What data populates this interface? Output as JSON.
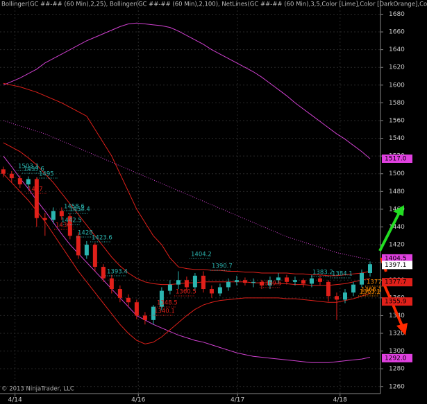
{
  "chart_data": {
    "type": "candlestick",
    "title": "Bollinger(GC ##-## (60 Min),2,25), Bollinger(GC ##-## (60 Min),2,100), NetLines(GC ##-## (60 Min),3,5,Color [Lime],Color [DarkOrange],Color [Teal],Color",
    "footer": "© 2013 NinjaTrader, LLC",
    "ylim": [
      1252,
      1696
    ],
    "yticks": [
      1260,
      1280,
      1300,
      1320,
      1340,
      1360,
      1380,
      1400,
      1420,
      1440,
      1460,
      1480,
      1500,
      1520,
      1540,
      1560,
      1580,
      1600,
      1620,
      1640,
      1660,
      1680
    ],
    "xlim": [
      -0.4,
      45.25
    ],
    "xticks": [
      {
        "value": 1.4,
        "label": "4/14"
      },
      {
        "value": 16.2,
        "label": "4/16"
      },
      {
        "value": 28.1,
        "label": "4/17"
      },
      {
        "value": 40.4,
        "label": "4/18"
      }
    ],
    "grid": true,
    "up_color": "#2bb5b0",
    "down_color": "#e0201a",
    "candles": {
      "open": [
        1505,
        1500,
        1495,
        1488,
        1494,
        1450,
        1448,
        1458,
        1452,
        1430,
        1408,
        1420,
        1395,
        1382,
        1370,
        1360,
        1355,
        1340,
        1335,
        1350,
        1368,
        1375,
        1380,
        1372,
        1385,
        1370,
        1365,
        1372,
        1378,
        1380,
        1377,
        1378,
        1374,
        1380,
        1383,
        1378,
        1380,
        1376,
        1382,
        1378,
        1362,
        1358,
        1366,
        1375,
        1388
      ],
      "high": [
        1508,
        1503,
        1498,
        1497,
        1496,
        1456,
        1462,
        1462,
        1456,
        1434,
        1424,
        1422,
        1398,
        1386,
        1374,
        1364,
        1358,
        1344,
        1352,
        1372,
        1380,
        1390,
        1384,
        1388,
        1390,
        1374,
        1376,
        1382,
        1385,
        1383,
        1382,
        1380,
        1384,
        1388,
        1386,
        1384,
        1382,
        1386,
        1386,
        1380,
        1366,
        1370,
        1378,
        1392,
        1401
      ],
      "low": [
        1496,
        1490,
        1484,
        1484,
        1440,
        1430,
        1444,
        1448,
        1426,
        1404,
        1404,
        1390,
        1378,
        1365,
        1355,
        1350,
        1336,
        1330,
        1330,
        1346,
        1364,
        1370,
        1368,
        1368,
        1366,
        1360,
        1362,
        1368,
        1374,
        1374,
        1372,
        1370,
        1370,
        1376,
        1375,
        1374,
        1372,
        1372,
        1374,
        1356,
        1335,
        1354,
        1362,
        1372,
        1384
      ],
      "close": [
        1500,
        1495,
        1488,
        1494,
        1450,
        1448,
        1458,
        1452,
        1430,
        1408,
        1420,
        1395,
        1382,
        1370,
        1360,
        1355,
        1340,
        1335,
        1350,
        1368,
        1375,
        1380,
        1372,
        1385,
        1370,
        1365,
        1372,
        1378,
        1380,
        1377,
        1378,
        1374,
        1380,
        1383,
        1378,
        1380,
        1376,
        1382,
        1378,
        1362,
        1358,
        1366,
        1375,
        1388,
        1398
      ]
    },
    "series": [
      {
        "color": "#d040d0",
        "dash": false,
        "values": [
          1600,
          1604,
          1608,
          1613,
          1618,
          1625,
          1630,
          1635,
          1640,
          1645,
          1650,
          1654,
          1658,
          1662,
          1666,
          1669,
          1670,
          1669,
          1668,
          1667,
          1665,
          1661,
          1656,
          1651,
          1646,
          1640,
          1635,
          1630,
          1625,
          1620,
          1615,
          1609,
          1602,
          1595,
          1588,
          1580,
          1573,
          1566,
          1559,
          1552,
          1545,
          1539,
          1532,
          1525,
          1517
        ]
      },
      {
        "color": "#d040d0",
        "dash": true,
        "values": [
          1560,
          1557,
          1554,
          1551,
          1548,
          1545,
          1541,
          1537,
          1533,
          1529,
          1525,
          1521,
          1517,
          1513,
          1509,
          1505,
          1501,
          1497,
          1493,
          1489,
          1485,
          1481,
          1477,
          1473,
          1469,
          1465,
          1461,
          1457,
          1453,
          1449,
          1445,
          1441,
          1437,
          1433,
          1429,
          1426,
          1423,
          1420,
          1417,
          1414,
          1411,
          1409,
          1407,
          1405,
          1403
        ]
      },
      {
        "color": "#d040d0",
        "dash": false,
        "values": [
          1520,
          1508,
          1495,
          1483,
          1470,
          1458,
          1445,
          1432,
          1420,
          1410,
          1400,
          1390,
          1380,
          1370,
          1360,
          1350,
          1340,
          1335,
          1330,
          1326,
          1322,
          1318,
          1315,
          1312,
          1310,
          1307,
          1304,
          1301,
          1298,
          1296,
          1294,
          1293,
          1292,
          1291,
          1290,
          1289,
          1288,
          1287,
          1287,
          1287,
          1288,
          1289,
          1290,
          1291,
          1293
        ]
      },
      {
        "color": "#e0201a",
        "dash": false,
        "values": [
          1602,
          1600,
          1598,
          1595,
          1592,
          1588,
          1584,
          1580,
          1575,
          1570,
          1565,
          1550,
          1535,
          1520,
          1500,
          1480,
          1460,
          1445,
          1430,
          1420,
          1405,
          1395,
          1393,
          1392,
          1392,
          1391,
          1391,
          1390,
          1390,
          1389,
          1389,
          1388,
          1388,
          1388,
          1388,
          1387,
          1387,
          1386,
          1386,
          1385,
          1385,
          1386,
          1387,
          1388,
          1390
        ]
      },
      {
        "color": "#e0201a",
        "dash": false,
        "values": [
          1535,
          1530,
          1525,
          1518,
          1510,
          1500,
          1490,
          1478,
          1466,
          1454,
          1442,
          1430,
          1418,
          1406,
          1396,
          1388,
          1382,
          1378,
          1376,
          1375,
          1375,
          1376,
          1377,
          1377,
          1378,
          1378,
          1378,
          1378,
          1378,
          1378,
          1377,
          1377,
          1377,
          1376,
          1376,
          1375,
          1375,
          1374,
          1374,
          1374,
          1375,
          1376,
          1378,
          1380,
          1382
        ]
      },
      {
        "color": "#e0201a",
        "dash": false,
        "values": [
          1500,
          1490,
          1480,
          1470,
          1458,
          1446,
          1432,
          1418,
          1404,
          1390,
          1378,
          1366,
          1354,
          1342,
          1330,
          1320,
          1312,
          1308,
          1310,
          1316,
          1324,
          1332,
          1340,
          1347,
          1352,
          1355,
          1357,
          1358,
          1359,
          1360,
          1360,
          1360,
          1360,
          1360,
          1359,
          1359,
          1358,
          1357,
          1356,
          1355,
          1355,
          1357,
          1359,
          1362,
          1365
        ]
      }
    ],
    "price_markers": [
      {
        "value": 1517,
        "label": "1517.0",
        "color": "#e040e0"
      },
      {
        "value": 1404.5,
        "label": "1404.5",
        "color": "#e040e0"
      },
      {
        "value": 1397.1,
        "label": "1397.1",
        "color": "#ffffff"
      },
      {
        "value": 1377.7,
        "label": "1377.7",
        "color": "#e0201a"
      },
      {
        "value": 1355.9,
        "label": "1355.9",
        "color": "#e0201a"
      },
      {
        "value": 1292,
        "label": "1292.0",
        "color": "#e040e0"
      }
    ],
    "annotations": [
      {
        "text": "1503.3",
        "color": "#2bb5b0"
      },
      {
        "text": "1499.6",
        "color": "#2bb5b0"
      },
      {
        "text": "1495",
        "color": "#2bb5b0"
      },
      {
        "text": "1458.6",
        "color": "#2bb5b0"
      },
      {
        "text": "1454.4",
        "color": "#2bb5b0"
      },
      {
        "text": "1442.5",
        "color": "#2bb5b0"
      },
      {
        "text": "1428",
        "color": "#2bb5b0"
      },
      {
        "text": "1423.6",
        "color": "#2bb5b0"
      },
      {
        "text": "1393.4",
        "color": "#2bb5b0"
      },
      {
        "text": "1404.2",
        "color": "#2bb5b0"
      },
      {
        "text": "1390.7",
        "color": "#2bb5b0"
      },
      {
        "text": "1383.2",
        "color": "#2bb5b0"
      },
      {
        "text": "1384.1",
        "color": "#2bb5b0"
      },
      {
        "text": "1477",
        "color": "#e0201a"
      },
      {
        "text": "1436",
        "color": "#e0201a"
      },
      {
        "text": "1348.5",
        "color": "#e0201a"
      },
      {
        "text": "1340.1",
        "color": "#e0201a"
      },
      {
        "text": "1360.5",
        "color": "#e0201a"
      },
      {
        "text": "1369.5",
        "color": "#e0201a"
      },
      {
        "text": "1377.9",
        "color": "#ff8c00"
      },
      {
        "text": "1368.1",
        "color": "#ff8c00"
      },
      {
        "text": "1363.1",
        "color": "#ff8c00"
      }
    ]
  }
}
